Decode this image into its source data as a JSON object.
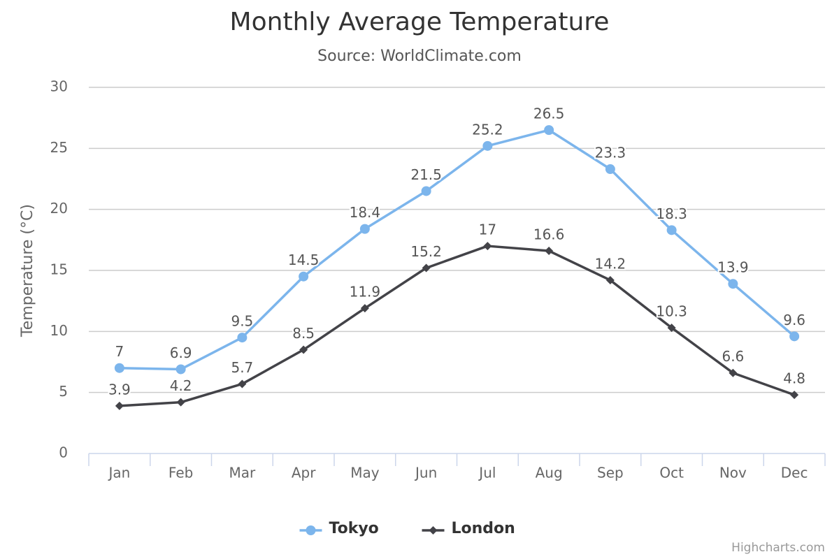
{
  "chart_data": {
    "type": "line",
    "title": "Monthly Average Temperature",
    "subtitle": "Source: WorldClimate.com",
    "y_label": "Temperature (°C)",
    "categories": [
      "Jan",
      "Feb",
      "Mar",
      "Apr",
      "May",
      "Jun",
      "Jul",
      "Aug",
      "Sep",
      "Oct",
      "Nov",
      "Dec"
    ],
    "series": [
      {
        "name": "Tokyo",
        "color": "#7cb5ec",
        "marker": "circle",
        "values": [
          7,
          6.9,
          9.5,
          14.5,
          18.4,
          21.5,
          25.2,
          26.5,
          23.3,
          18.3,
          13.9,
          9.6
        ]
      },
      {
        "name": "London",
        "color": "#434348",
        "marker": "diamond",
        "values": [
          3.9,
          4.2,
          5.7,
          8.5,
          11.9,
          15.2,
          17,
          16.6,
          14.2,
          10.3,
          6.6,
          4.8
        ]
      }
    ],
    "ylim": [
      0,
      30
    ],
    "yticks": [
      0,
      5,
      10,
      15,
      20,
      25,
      30
    ],
    "grid": true,
    "data_labels": true,
    "legend": "bottom",
    "credits": "Highcharts.com"
  }
}
